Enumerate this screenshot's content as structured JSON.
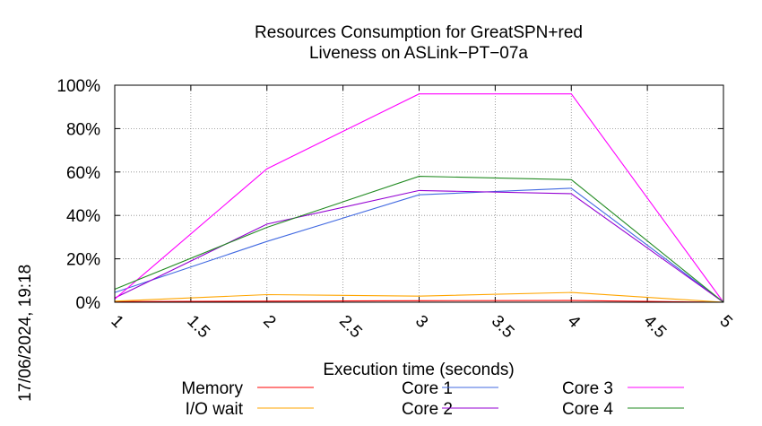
{
  "chart_data": {
    "type": "line",
    "title_line1": "Resources Consumption for GreatSPN+red",
    "title_line2": "Liveness on ASLink−PT−07a",
    "xlabel": "Execution time (seconds)",
    "ylabel": "",
    "xlim": [
      1,
      5
    ],
    "ylim": [
      0,
      100
    ],
    "x_ticks": [
      "1",
      "1.5",
      "2",
      "2.5",
      "3",
      "3.5",
      "4",
      "4.5",
      "5"
    ],
    "y_ticks": [
      "0%",
      "20%",
      "40%",
      "60%",
      "80%",
      "100%"
    ],
    "grid": true,
    "legend_position": "bottom",
    "timestamp": "17/06/2024, 19:18",
    "series": [
      {
        "name": "Memory",
        "color": "#ff0000",
        "x": [
          1,
          2,
          3,
          4,
          5
        ],
        "y": [
          0.3,
          0.5,
          0.7,
          0.8,
          0
        ]
      },
      {
        "name": "I/O wait",
        "color": "#ffa500",
        "x": [
          1,
          2,
          3,
          4,
          5
        ],
        "y": [
          0.5,
          3.5,
          2.8,
          4.5,
          0
        ]
      },
      {
        "name": "Core 1",
        "color": "#4169e1",
        "x": [
          1,
          2,
          3,
          4,
          5
        ],
        "y": [
          4.5,
          28,
          49.5,
          52.5,
          0
        ]
      },
      {
        "name": "Core 2",
        "color": "#9400d3",
        "x": [
          1,
          2,
          3,
          4,
          5
        ],
        "y": [
          2,
          36,
          51.5,
          50,
          0
        ]
      },
      {
        "name": "Core 3",
        "color": "#ff00ff",
        "x": [
          1,
          2,
          3,
          4,
          5
        ],
        "y": [
          1.5,
          61.5,
          96,
          96,
          0
        ]
      },
      {
        "name": "Core 4",
        "color": "#228b22",
        "x": [
          1,
          2,
          3,
          4,
          5
        ],
        "y": [
          6,
          34.5,
          58,
          56.5,
          0
        ]
      }
    ]
  }
}
